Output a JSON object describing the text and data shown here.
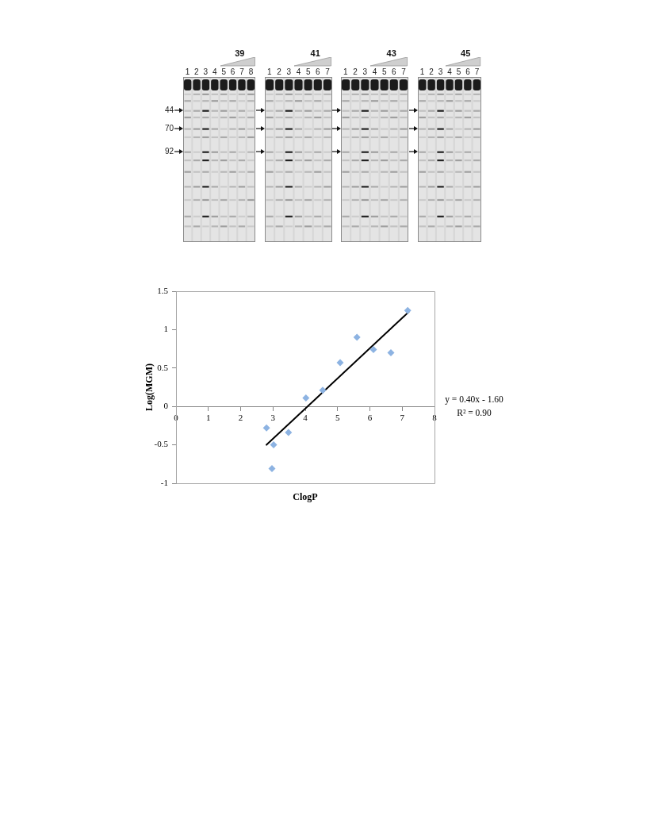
{
  "chart_data": [
    {
      "type": "other",
      "annotations": [
        "44",
        "70",
        "92"
      ]
    },
    {
      "type": "other",
      "title": "39",
      "annotations": [
        "1 2 3 4 5 6 7 8"
      ]
    },
    {
      "type": "other",
      "title": "41",
      "annotations": [
        "1 2 3 4 5 6 7"
      ]
    },
    {
      "type": "other",
      "title": "43",
      "annotations": [
        "1 2 3 4 5 6 7"
      ]
    },
    {
      "type": "other",
      "title": "45",
      "annotations": [
        "1 2 3 4 5 6 7"
      ]
    },
    {
      "type": "scatter",
      "xlabel": "ClogP",
      "ylabel": "Log(MGM)",
      "xlim": [
        0,
        8
      ],
      "xticks": [
        0,
        1,
        2,
        3,
        4,
        5,
        6,
        7,
        8
      ],
      "ylim": [
        -1,
        1.5
      ],
      "yticks": [
        -1,
        -0.5,
        0,
        0.5,
        1,
        1.5
      ],
      "marker": "diamond",
      "series": [
        {
          "color": "#8db3e2",
          "x": [
            2.8,
            2.97,
            3.02,
            3.48,
            4.02,
            4.54,
            5.08,
            5.6,
            6.11,
            6.65,
            7.17
          ],
          "values": [
            -0.28,
            -0.81,
            -0.5,
            -0.34,
            0.11,
            0.21,
            0.57,
            0.9,
            0.74,
            0.7,
            1.25
          ]
        },
        {
          "type": "line",
          "color": "#000000",
          "marker": "none",
          "x": [
            2.8,
            7.2
          ],
          "values": [
            -0.5,
            1.23
          ]
        }
      ],
      "annotations": [
        "y = 0.40x - 1.60",
        "R² = 0.90"
      ]
    }
  ]
}
